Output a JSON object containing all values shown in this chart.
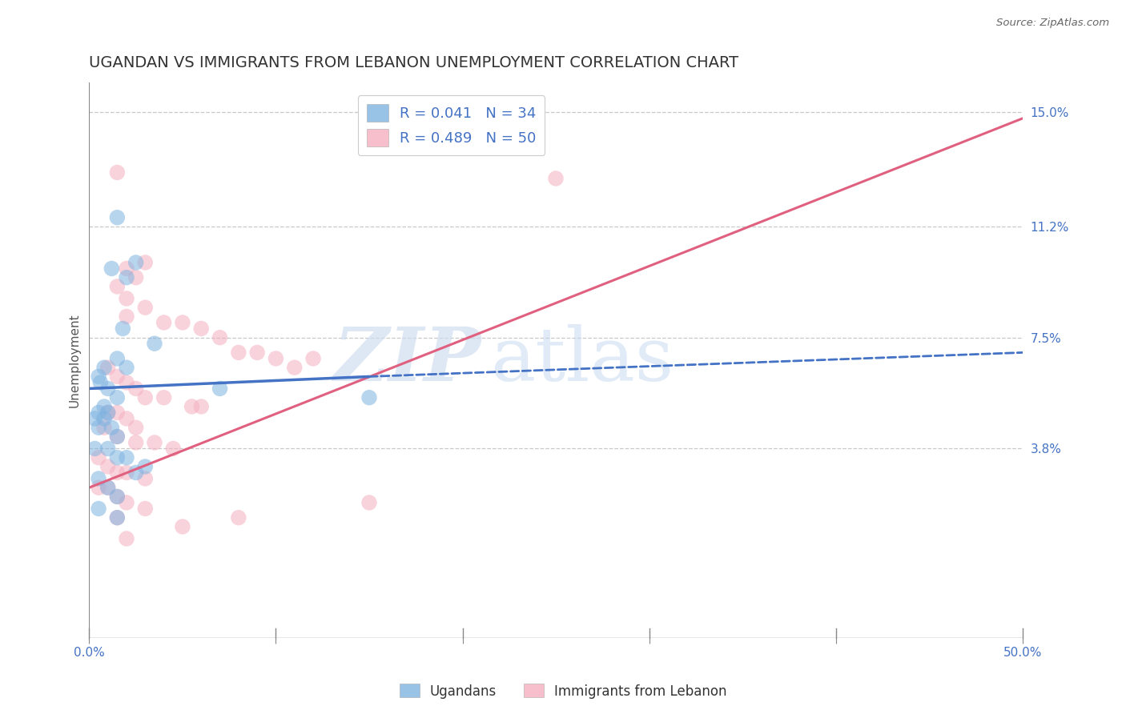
{
  "title": "UGANDAN VS IMMIGRANTS FROM LEBANON UNEMPLOYMENT CORRELATION CHART",
  "source_text": "Source: ZipAtlas.com",
  "xlabel": "",
  "ylabel": "Unemployment",
  "x_min": 0.0,
  "x_max": 50.0,
  "y_min": -2.5,
  "y_max": 16.0,
  "y_ticks": [
    3.8,
    7.5,
    11.2,
    15.0
  ],
  "x_ticks": [
    0.0,
    10.0,
    20.0,
    30.0,
    40.0,
    50.0
  ],
  "x_tick_labels": [
    "0.0%",
    "",
    "",
    "",
    "",
    "50.0%"
  ],
  "y_tick_labels": [
    "3.8%",
    "7.5%",
    "11.2%",
    "15.0%"
  ],
  "ugandan_color": "#7fb3e0",
  "lebanon_color": "#f5afc0",
  "ugandan_R": 0.041,
  "ugandan_N": 34,
  "lebanon_R": 0.489,
  "lebanon_N": 50,
  "legend_label_ugandan": "Ugandans",
  "legend_label_lebanon": "Immigrants from Lebanon",
  "r_n_color": "#4472c4",
  "watermark_zip": "ZIP",
  "watermark_atlas": "atlas",
  "ugandan_points": [
    [
      1.5,
      11.5
    ],
    [
      2.5,
      10.0
    ],
    [
      1.2,
      9.8
    ],
    [
      2.0,
      9.5
    ],
    [
      1.8,
      7.8
    ],
    [
      3.5,
      7.3
    ],
    [
      1.5,
      6.8
    ],
    [
      2.0,
      6.5
    ],
    [
      0.8,
      6.5
    ],
    [
      0.5,
      6.2
    ],
    [
      1.0,
      5.8
    ],
    [
      1.5,
      5.5
    ],
    [
      0.8,
      5.2
    ],
    [
      1.2,
      4.5
    ],
    [
      0.6,
      6.0
    ],
    [
      7.0,
      5.8
    ],
    [
      1.0,
      5.0
    ],
    [
      0.5,
      5.0
    ],
    [
      0.3,
      4.8
    ],
    [
      0.8,
      4.8
    ],
    [
      0.5,
      4.5
    ],
    [
      1.5,
      4.2
    ],
    [
      0.3,
      3.8
    ],
    [
      1.0,
      3.8
    ],
    [
      1.5,
      3.5
    ],
    [
      2.0,
      3.5
    ],
    [
      3.0,
      3.2
    ],
    [
      0.5,
      2.8
    ],
    [
      1.0,
      2.5
    ],
    [
      1.5,
      2.2
    ],
    [
      2.5,
      3.0
    ],
    [
      15.0,
      5.5
    ],
    [
      0.5,
      1.8
    ],
    [
      1.5,
      1.5
    ]
  ],
  "lebanon_points": [
    [
      1.5,
      13.0
    ],
    [
      3.0,
      10.0
    ],
    [
      2.0,
      9.8
    ],
    [
      2.5,
      9.5
    ],
    [
      1.5,
      9.2
    ],
    [
      2.0,
      8.8
    ],
    [
      3.0,
      8.5
    ],
    [
      2.0,
      8.2
    ],
    [
      4.0,
      8.0
    ],
    [
      5.0,
      8.0
    ],
    [
      6.0,
      7.8
    ],
    [
      7.0,
      7.5
    ],
    [
      8.0,
      7.0
    ],
    [
      9.0,
      7.0
    ],
    [
      10.0,
      6.8
    ],
    [
      11.0,
      6.5
    ],
    [
      12.0,
      6.8
    ],
    [
      1.0,
      6.5
    ],
    [
      1.5,
      6.2
    ],
    [
      2.0,
      6.0
    ],
    [
      2.5,
      5.8
    ],
    [
      3.0,
      5.5
    ],
    [
      4.0,
      5.5
    ],
    [
      5.5,
      5.2
    ],
    [
      6.0,
      5.2
    ],
    [
      1.0,
      5.0
    ],
    [
      1.5,
      5.0
    ],
    [
      2.0,
      4.8
    ],
    [
      2.5,
      4.5
    ],
    [
      0.8,
      4.5
    ],
    [
      1.5,
      4.2
    ],
    [
      2.5,
      4.0
    ],
    [
      3.5,
      4.0
    ],
    [
      4.5,
      3.8
    ],
    [
      0.5,
      3.5
    ],
    [
      1.0,
      3.2
    ],
    [
      1.5,
      3.0
    ],
    [
      2.0,
      3.0
    ],
    [
      3.0,
      2.8
    ],
    [
      0.5,
      2.5
    ],
    [
      1.0,
      2.5
    ],
    [
      1.5,
      2.2
    ],
    [
      2.0,
      2.0
    ],
    [
      1.5,
      1.5
    ],
    [
      3.0,
      1.8
    ],
    [
      5.0,
      1.2
    ],
    [
      8.0,
      1.5
    ],
    [
      15.0,
      2.0
    ],
    [
      25.0,
      12.8
    ],
    [
      2.0,
      0.8
    ]
  ],
  "blue_solid_x1": 0.0,
  "blue_solid_y1": 5.8,
  "blue_solid_x2": 15.0,
  "blue_solid_y2": 6.2,
  "blue_dash_x1": 15.0,
  "blue_dash_y1": 6.2,
  "blue_dash_x2": 50.0,
  "blue_dash_y2": 7.0,
  "pink_solid_x1": 0.0,
  "pink_solid_y1": 2.5,
  "pink_solid_x2": 50.0,
  "pink_solid_y2": 14.8,
  "dashed_line_color": "#bbbbbb",
  "title_fontsize": 14,
  "axis_label_fontsize": 11,
  "tick_fontsize": 11,
  "marker_size": 14,
  "background_color": "#ffffff"
}
